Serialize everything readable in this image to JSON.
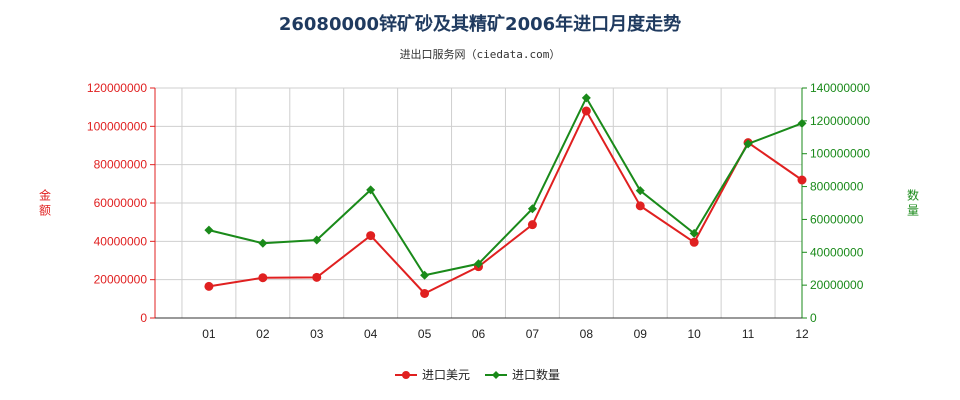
{
  "chart_data": {
    "type": "line",
    "title": "26080000锌矿砂及其精矿2006年进口月度走势",
    "subtitle": "进出口服务网（ciedata.com）",
    "ylabel_left": "金额",
    "ylabel_right": "数量",
    "categories": [
      "01",
      "02",
      "03",
      "04",
      "05",
      "06",
      "07",
      "08",
      "09",
      "10",
      "11",
      "12"
    ],
    "ylim_left": [
      0,
      120000000
    ],
    "ylim_right": [
      0,
      140000000
    ],
    "yticks_left": [
      "0",
      "20000000",
      "40000000",
      "60000000",
      "80000000",
      "100000000",
      "120000000"
    ],
    "yticks_right": [
      "0",
      "20000000",
      "40000000",
      "60000000",
      "80000000",
      "100000000",
      "120000000",
      "140000000"
    ],
    "grid": true,
    "legend_position": "bottom",
    "series": [
      {
        "name": "进口美元",
        "axis": "left",
        "color": "#e02020",
        "values": [
          16500000,
          21000000,
          21200000,
          43000000,
          12800000,
          26800000,
          48700000,
          108000000,
          58500000,
          39500000,
          91500000,
          72000000
        ]
      },
      {
        "name": "进口数量",
        "axis": "right",
        "color": "#1a8a1a",
        "values": [
          53500000,
          45500000,
          47500000,
          78000000,
          26000000,
          33000000,
          66500000,
          134000000,
          77500000,
          51500000,
          106000000,
          118500000
        ]
      }
    ]
  }
}
